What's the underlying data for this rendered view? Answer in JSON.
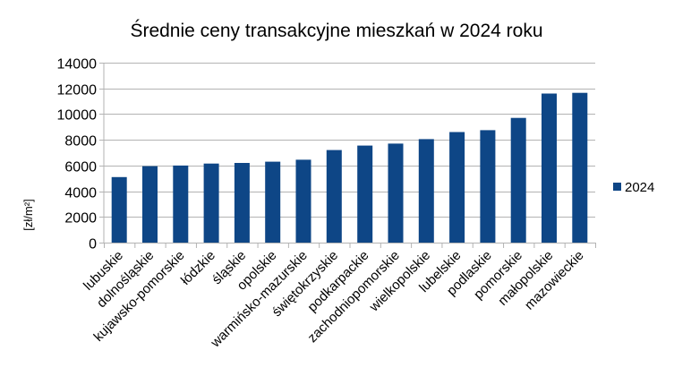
{
  "chart_data": {
    "type": "bar",
    "title": "Średnie ceny transakcyjne mieszkań w 2024 roku",
    "ylabel": "[zł/m²]",
    "xlabel": "",
    "ylim": [
      0,
      14000
    ],
    "yticks": [
      0,
      2000,
      4000,
      6000,
      8000,
      10000,
      12000,
      14000
    ],
    "grid": true,
    "legend_position": "right",
    "categories": [
      "lubuskie",
      "dolnośląskie",
      "kujawsko-pomorskie",
      "łódzkie",
      "śląskie",
      "opolskie",
      "warmińsko-mazurskie",
      "świętokrzyskie",
      "podkarpackie",
      "zachodniopomorskie",
      "wielkopolskie",
      "lubelskie",
      "podlaskie",
      "pomorskie",
      "małopolskie",
      "mazowieckie"
    ],
    "series": [
      {
        "name": "2024",
        "color": "#0e4686",
        "values": [
          5100,
          5950,
          6000,
          6150,
          6200,
          6300,
          6450,
          7200,
          7550,
          7700,
          8050,
          8600,
          8750,
          9700,
          11600,
          11650
        ]
      }
    ]
  }
}
